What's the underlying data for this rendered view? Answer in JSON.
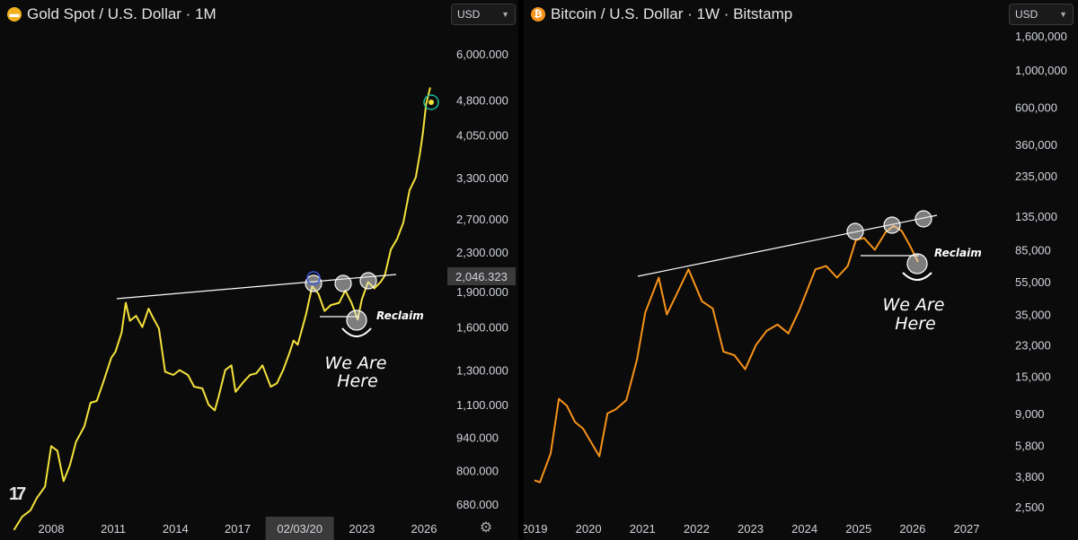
{
  "gold": {
    "title": "Gold Spot / U.S. Dollar · 1M",
    "currency": "USD",
    "crosshair_price": "2,046.323",
    "crosshair_date": "02/03/20",
    "line_color": "#f5e23c",
    "icon": "gold-bars-icon"
  },
  "btc": {
    "title": "Bitcoin / U.S. Dollar · 1W · Bitstamp",
    "currency": "USD",
    "line_color": "#f7931a",
    "icon": "bitcoin-icon"
  },
  "annotations": {
    "gold_reclaim": "Reclaim",
    "gold_here_1": "We Are",
    "gold_here_2": "Here",
    "btc_reclaim": "Reclaim",
    "btc_here_1": "We Are",
    "btc_here_2": "Here"
  },
  "chart_data": [
    {
      "type": "line",
      "title": "Gold Spot / U.S. Dollar · 1M",
      "scale": "log",
      "y_ticks": [
        "6,000.000",
        "4,800.000",
        "4,050.000",
        "3,300.000",
        "2,700.000",
        "2,300.000",
        "1,900.000",
        "1,600.000",
        "1,300.000",
        "1,100.000",
        "940.000",
        "800.000",
        "680.000"
      ],
      "y_tick_values": [
        6000,
        4800,
        4050,
        3300,
        2700,
        2300,
        1900,
        1600,
        1300,
        1100,
        940,
        800,
        680
      ],
      "x_ticks": [
        "2008",
        "2011",
        "2014",
        "2017",
        "2020",
        "2023",
        "2026"
      ],
      "x_tick_values": [
        2008,
        2011,
        2014,
        2017,
        2020,
        2023,
        2026
      ],
      "series": [
        {
          "x": [
            2006.2,
            2006.6,
            2007.0,
            2007.3,
            2007.7,
            2008.0,
            2008.3,
            2008.6,
            2008.9,
            2009.2,
            2009.6,
            2009.9,
            2010.2,
            2010.5,
            2010.9,
            2011.1,
            2011.4,
            2011.6,
            2011.8,
            2012.1,
            2012.4,
            2012.7,
            2012.9,
            2013.2,
            2013.5,
            2013.9,
            2014.2,
            2014.6,
            2014.9,
            2015.3,
            2015.6,
            2015.9,
            2016.1,
            2016.4,
            2016.7,
            2016.9,
            2017.3,
            2017.6,
            2017.9,
            2018.2,
            2018.6,
            2018.9,
            2019.2,
            2019.5,
            2019.7,
            2019.9,
            2020.1,
            2020.3,
            2020.6,
            2020.9,
            2021.2,
            2021.5,
            2021.9,
            2022.2,
            2022.5,
            2022.8,
            2023.0,
            2023.3,
            2023.6,
            2023.9,
            2024.1,
            2024.4,
            2024.7,
            2025.0,
            2025.3,
            2025.6,
            2025.8,
            2025.95,
            2026.1,
            2026.3
          ],
          "values": [
            600,
            640,
            660,
            700,
            740,
            900,
            880,
            760,
            820,
            920,
            990,
            1110,
            1120,
            1220,
            1380,
            1420,
            1560,
            1800,
            1650,
            1690,
            1600,
            1750,
            1680,
            1590,
            1290,
            1270,
            1300,
            1270,
            1200,
            1190,
            1100,
            1070,
            1150,
            1300,
            1330,
            1170,
            1230,
            1270,
            1280,
            1330,
            1200,
            1220,
            1300,
            1410,
            1500,
            1470,
            1580,
            1700,
            1950,
            1880,
            1730,
            1780,
            1800,
            1910,
            1800,
            1660,
            1830,
            1990,
            1930,
            1990,
            2050,
            2330,
            2450,
            2650,
            3100,
            3300,
            3700,
            4100,
            4700,
            5100
          ],
          "color": "#f5e23c"
        }
      ]
    },
    {
      "type": "line",
      "title": "Bitcoin / U.S. Dollar · 1W · Bitstamp",
      "scale": "log",
      "y_ticks": [
        "1,600,000",
        "1,000,000",
        "600,000",
        "360,000",
        "235,000",
        "135,000",
        "85,000",
        "55,000",
        "35,000",
        "23,000",
        "15,000",
        "9,000",
        "5,800",
        "3,800",
        "2,500"
      ],
      "y_tick_values": [
        1600000,
        1000000,
        600000,
        360000,
        235000,
        135000,
        85000,
        55000,
        35000,
        23000,
        15000,
        9000,
        5800,
        3800,
        2500
      ],
      "x_ticks": [
        "2019",
        "2020",
        "2021",
        "2022",
        "2023",
        "2024",
        "2025",
        "2026",
        "2027"
      ],
      "x_tick_values": [
        2019,
        2020,
        2021,
        2022,
        2023,
        2024,
        2025,
        2026,
        2027
      ],
      "series": [
        {
          "x": [
            2019.0,
            2019.1,
            2019.3,
            2019.45,
            2019.6,
            2019.75,
            2019.9,
            2020.2,
            2020.35,
            2020.5,
            2020.7,
            2020.9,
            2021.05,
            2021.3,
            2021.45,
            2021.6,
            2021.85,
            2022.1,
            2022.3,
            2022.5,
            2022.7,
            2022.9,
            2023.1,
            2023.3,
            2023.5,
            2023.7,
            2023.9,
            2024.2,
            2024.4,
            2024.6,
            2024.8,
            2024.95,
            2025.1,
            2025.3,
            2025.5,
            2025.65,
            2025.8,
            2025.95,
            2026.1
          ],
          "values": [
            3600,
            3500,
            5200,
            11000,
            10000,
            8000,
            7300,
            5000,
            9000,
            9500,
            10800,
            19000,
            36000,
            58000,
            35000,
            44000,
            65000,
            42000,
            38000,
            21000,
            20000,
            16500,
            23000,
            28000,
            30500,
            27000,
            37000,
            65000,
            68000,
            58000,
            68000,
            97000,
            100000,
            85000,
            108000,
            118000,
            110000,
            90000,
            72000
          ],
          "color": "#f7931a"
        }
      ]
    }
  ]
}
